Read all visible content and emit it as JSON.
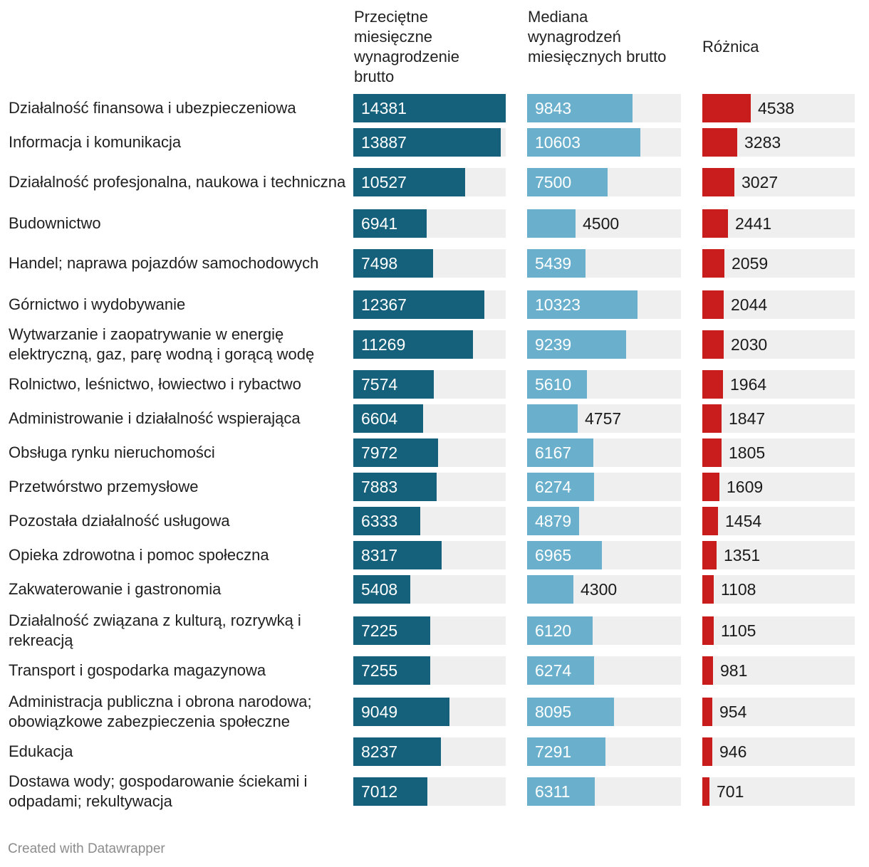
{
  "headers": {
    "label": "",
    "average": "Przeciętne miesięczne wynagrodzenie brutto",
    "median": "Mediana wynagrodzeń miesięcznych brutto",
    "difference": "Różnica"
  },
  "footer": "Created with Datawrapper",
  "colors": {
    "average_bar": "#15607a",
    "median_bar": "#6ab0cd",
    "difference_bar": "#c91d1d",
    "track": "#efefef"
  },
  "chart_data": {
    "type": "bar",
    "title": "",
    "categories": [
      "Działalność finansowa i ubezpieczeniowa",
      "Informacja i komunikacja",
      "Działalność profesjonalna, naukowa i techniczna",
      "Budownictwo",
      "Handel; naprawa pojazdów samochodowych",
      "Górnictwo i wydobywanie",
      "Wytwarzanie i zaopatrywanie w energię elektryczną, gaz, parę wodną i gorącą wodę",
      "Rolnictwo, leśnictwo, łowiectwo i rybactwo",
      "Administrowanie i działalność wspierająca",
      "Obsługa rynku nieruchomości",
      "Przetwórstwo przemysłowe",
      "Pozostała działalność usługowa",
      "Opieka zdrowotna i pomoc społeczna",
      "Zakwaterowanie i gastronomia",
      "Działalność związana z kulturą, rozrywką i rekreacją",
      "Transport i gospodarka magazynowa",
      "Administracja publiczna i obrona narodowa; obowiązkowe zabezpieczenia społeczne",
      "Edukacja",
      "Dostawa wody; gospodarowanie ściekami i odpadami; rekultywacja"
    ],
    "series": [
      {
        "name": "Przeciętne miesięczne wynagrodzenie brutto",
        "values": [
          14381,
          13887,
          10527,
          6941,
          7498,
          12367,
          11269,
          7574,
          6604,
          7972,
          7883,
          6333,
          8317,
          5408,
          7225,
          7255,
          9049,
          8237,
          7012
        ],
        "max": 14381
      },
      {
        "name": "Mediana wynagrodzeń miesięcznych brutto",
        "values": [
          9843,
          10603,
          7500,
          4500,
          5439,
          10323,
          9239,
          5610,
          4757,
          6167,
          6274,
          4879,
          6965,
          4300,
          6120,
          6274,
          8095,
          7291,
          6311
        ],
        "max": 14381
      },
      {
        "name": "Różnica",
        "values": [
          4538,
          3283,
          3027,
          2441,
          2059,
          2044,
          2030,
          1964,
          1847,
          1805,
          1609,
          1454,
          1351,
          1108,
          1105,
          981,
          954,
          946,
          701
        ],
        "max": 14381
      }
    ]
  }
}
